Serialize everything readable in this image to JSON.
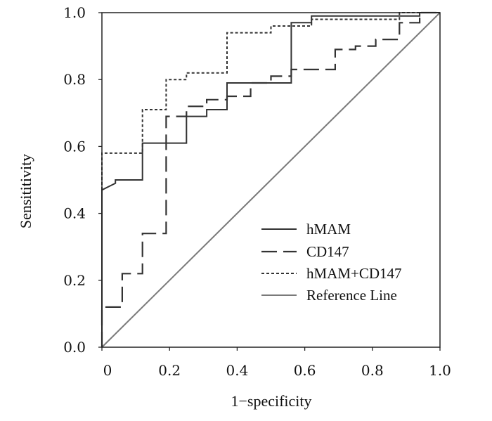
{
  "chart_data": {
    "type": "line",
    "title": "",
    "xlabel": "1−specificity",
    "ylabel": "Sensititivity",
    "xlim": [
      0,
      1
    ],
    "ylim": [
      0,
      1
    ],
    "x_ticks": [
      "0",
      "0.2",
      "0.4",
      "0.6",
      "0.8",
      "1.0"
    ],
    "y_ticks": [
      "0.0",
      "0.2",
      "0.4",
      "0.6",
      "0.8",
      "1.0"
    ],
    "grid": false,
    "legend_position": "bottom-right",
    "series": [
      {
        "name": "hMAM",
        "style": "solid",
        "color": "#333333",
        "points": [
          [
            0,
            0
          ],
          [
            0,
            0.47
          ],
          [
            0.02,
            0.48
          ],
          [
            0.04,
            0.49
          ],
          [
            0.04,
            0.5
          ],
          [
            0.12,
            0.5
          ],
          [
            0.12,
            0.61
          ],
          [
            0.25,
            0.61
          ],
          [
            0.25,
            0.69
          ],
          [
            0.31,
            0.69
          ],
          [
            0.31,
            0.71
          ],
          [
            0.37,
            0.71
          ],
          [
            0.37,
            0.79
          ],
          [
            0.56,
            0.79
          ],
          [
            0.56,
            0.97
          ],
          [
            0.62,
            0.97
          ],
          [
            0.62,
            0.99
          ],
          [
            0.94,
            0.99
          ],
          [
            0.94,
            1.0
          ],
          [
            1.0,
            1.0
          ]
        ]
      },
      {
        "name": "CD147",
        "style": "dashed",
        "color": "#333333",
        "points": [
          [
            0,
            0
          ],
          [
            0,
            0.12
          ],
          [
            0.06,
            0.12
          ],
          [
            0.06,
            0.22
          ],
          [
            0.12,
            0.22
          ],
          [
            0.12,
            0.34
          ],
          [
            0.19,
            0.34
          ],
          [
            0.19,
            0.69
          ],
          [
            0.25,
            0.69
          ],
          [
            0.25,
            0.72
          ],
          [
            0.31,
            0.72
          ],
          [
            0.31,
            0.74
          ],
          [
            0.37,
            0.74
          ],
          [
            0.37,
            0.75
          ],
          [
            0.44,
            0.75
          ],
          [
            0.44,
            0.79
          ],
          [
            0.5,
            0.79
          ],
          [
            0.5,
            0.81
          ],
          [
            0.56,
            0.81
          ],
          [
            0.56,
            0.83
          ],
          [
            0.69,
            0.83
          ],
          [
            0.69,
            0.89
          ],
          [
            0.75,
            0.89
          ],
          [
            0.75,
            0.9
          ],
          [
            0.81,
            0.9
          ],
          [
            0.81,
            0.92
          ],
          [
            0.88,
            0.92
          ],
          [
            0.88,
            0.97
          ],
          [
            0.94,
            0.97
          ],
          [
            0.94,
            1.0
          ],
          [
            1.0,
            1.0
          ]
        ]
      },
      {
        "name": "hMAM+CD147",
        "style": "dotted",
        "color": "#333333",
        "points": [
          [
            0,
            0
          ],
          [
            0,
            0.58
          ],
          [
            0.12,
            0.58
          ],
          [
            0.12,
            0.71
          ],
          [
            0.19,
            0.71
          ],
          [
            0.19,
            0.8
          ],
          [
            0.25,
            0.8
          ],
          [
            0.25,
            0.82
          ],
          [
            0.37,
            0.82
          ],
          [
            0.37,
            0.94
          ],
          [
            0.5,
            0.94
          ],
          [
            0.5,
            0.96
          ],
          [
            0.62,
            0.96
          ],
          [
            0.62,
            0.98
          ],
          [
            0.88,
            0.98
          ],
          [
            0.88,
            1.0
          ],
          [
            1.0,
            1.0
          ]
        ]
      },
      {
        "name": "Reference Line",
        "style": "solid",
        "color": "#7a7a7a",
        "points": [
          [
            0,
            0
          ],
          [
            1,
            1
          ]
        ]
      }
    ]
  }
}
